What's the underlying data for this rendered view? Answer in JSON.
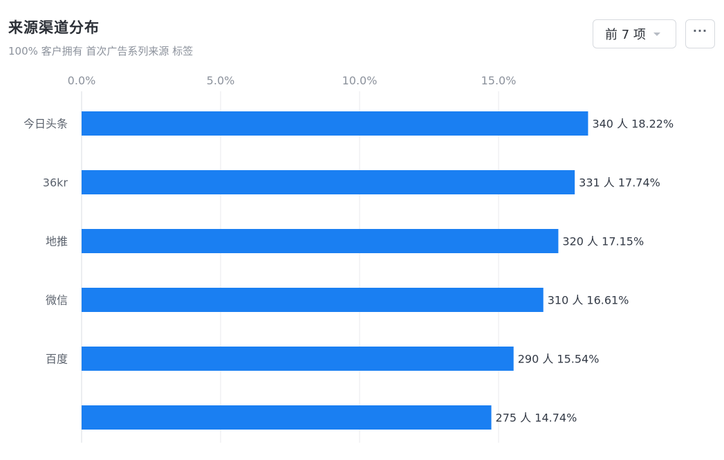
{
  "header": {
    "title": "来源渠道分布",
    "subtitle": "100% 客户拥有 首次广告系列来源 标签"
  },
  "controls": {
    "top_n_label": "前 7 项",
    "more_label": "···"
  },
  "chart_data": {
    "type": "bar",
    "orientation": "horizontal",
    "title": "来源渠道分布",
    "subtitle": "100% 客户拥有 首次广告系列来源 标签",
    "categories": [
      "今日头条",
      "36kr",
      "地推",
      "微信",
      "百度",
      ""
    ],
    "counts": [
      340,
      331,
      320,
      310,
      290,
      275
    ],
    "values": [
      18.22,
      17.74,
      17.15,
      16.61,
      15.54,
      14.74
    ],
    "data_labels": [
      "340 人 18.22%",
      "331 人 17.74%",
      "320 人 17.15%",
      "310 人 16.61%",
      "290 人 15.54%",
      "275 人 14.74%"
    ],
    "x_ticks": [
      0,
      5,
      10,
      15
    ],
    "x_tick_labels": [
      "0.0%",
      "5.0%",
      "10.0%",
      "15.0%"
    ],
    "xlim": [
      0,
      18.22
    ],
    "grid": true,
    "color": "#1a7ff2"
  }
}
